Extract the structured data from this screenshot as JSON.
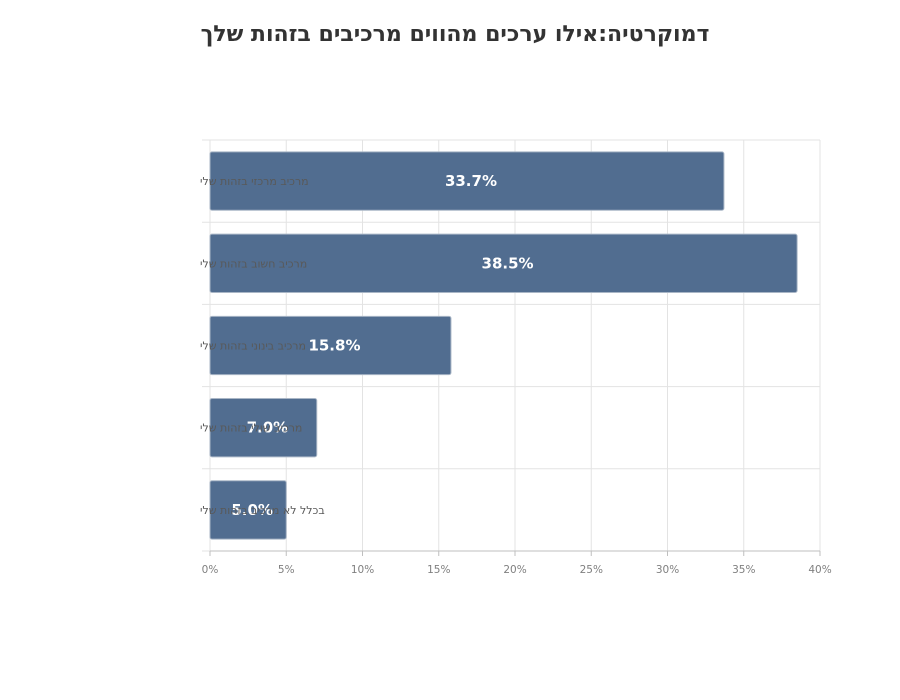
{
  "chart_data": {
    "type": "bar",
    "orientation": "horizontal",
    "title": "דמוקרטיה:אילו ערכים מהווים מרכיבים בזהות שלך",
    "categories": [
      "מרכיב מרכזי בזהות שלי",
      "מרכיב חשוב בזהות שלי",
      "מרכיב בינוני בזהות שלי",
      "מרכיב שולי בזהות שלי",
      "בכלל לא מרכיב בזהות שלי"
    ],
    "values": [
      33.7,
      38.5,
      15.8,
      7.0,
      5.0
    ],
    "data_labels": [
      "33.7%",
      "38.5%",
      "15.8%",
      "7.0%",
      "5.0%"
    ],
    "xlim": [
      0,
      40
    ],
    "xticks": [
      0,
      5,
      10,
      15,
      20,
      25,
      30,
      35,
      40
    ],
    "xtick_labels": [
      "0%",
      "5%",
      "10%",
      "15%",
      "20%",
      "25%",
      "30%",
      "35%",
      "40%"
    ],
    "xlabel": "",
    "ylabel": "",
    "grid": true,
    "legend": "none",
    "colors": {
      "bar": "#516d90",
      "bar_edge": "#a9b6c6",
      "grid": "#e3e3e3",
      "axis": "#bfbfbf",
      "title": "#333333"
    }
  }
}
